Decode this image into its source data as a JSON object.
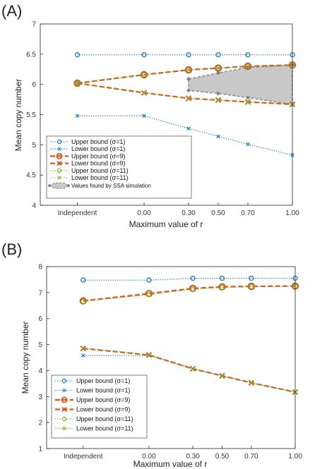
{
  "chart_data": [
    {
      "panel_label": "(A)",
      "type": "line",
      "xlabel": "Maximum value of  r",
      "ylabel": "Mean copy number",
      "categories": [
        "Independent",
        "0.00",
        "0.30",
        "0.50",
        "0.70",
        "1.00"
      ],
      "x": [
        -0.45,
        0.0,
        0.3,
        0.5,
        0.7,
        1.0
      ],
      "xlim": [
        -0.7,
        1.0
      ],
      "ylim": [
        4,
        7
      ],
      "yticks": [
        4,
        4.5,
        5,
        5.5,
        6,
        6.5,
        7
      ],
      "ytick_labels": [
        "4",
        "4.5",
        "5",
        "5.5",
        "6",
        "6.5",
        "7"
      ],
      "grid": false,
      "legend_position": "bottom-left",
      "series": [
        {
          "name": "Upper bound (σ=1)",
          "values": [
            6.49,
            6.49,
            6.49,
            6.49,
            6.49,
            6.49
          ],
          "color": "#1f77b4",
          "marker": "circle",
          "line": "dotted"
        },
        {
          "name": "Lower bound (σ=1)",
          "values": [
            5.48,
            5.48,
            5.27,
            5.14,
            5.01,
            4.83
          ],
          "color": "#1f77b4",
          "marker": "x",
          "line": "dotted"
        },
        {
          "name": "Upper bound (σ=9)",
          "values": [
            6.02,
            6.16,
            6.24,
            6.27,
            6.3,
            6.32
          ],
          "color": "#d95319",
          "marker": "circle",
          "line": "dashed"
        },
        {
          "name": "Lower bound (σ=9)",
          "values": [
            6.02,
            5.86,
            5.77,
            5.74,
            5.71,
            5.67
          ],
          "color": "#d95319",
          "marker": "x",
          "line": "dashed"
        },
        {
          "name": "Upper bound (σ=11)",
          "values": [
            6.02,
            6.16,
            6.24,
            6.27,
            6.3,
            6.31
          ],
          "color": "#77ac30",
          "marker": "circle",
          "line": "dotted"
        },
        {
          "name": "Lower bound (σ=11)",
          "values": [
            6.02,
            5.86,
            5.77,
            5.74,
            5.71,
            5.67
          ],
          "color": "#77ac30",
          "marker": "x",
          "line": "dotted"
        }
      ],
      "ssa_region": {
        "name": "Values found by SSA simulation",
        "x": [
          0.3,
          0.5,
          0.7,
          1.0
        ],
        "upper": [
          6.09,
          6.19,
          6.28,
          6.32
        ],
        "lower": [
          5.9,
          5.85,
          5.78,
          5.67
        ],
        "fill_color": "#c8c8c8",
        "line_color": "#808080"
      }
    },
    {
      "panel_label": "(B)",
      "type": "line",
      "xlabel": "Maximum value of  r",
      "ylabel": "Mean copy number",
      "categories": [
        "Independent",
        "0.00",
        "0.30",
        "0.50",
        "0.70",
        "1.00"
      ],
      "x": [
        -0.45,
        0.0,
        0.3,
        0.5,
        0.7,
        1.0
      ],
      "xlim": [
        -0.7,
        1.0
      ],
      "ylim": [
        1,
        8
      ],
      "yticks": [
        1,
        2,
        3,
        4,
        5,
        6,
        7,
        8
      ],
      "ytick_labels": [
        "1",
        "2",
        "3",
        "4",
        "5",
        "6",
        "7",
        "8"
      ],
      "grid": false,
      "legend_position": "bottom-left",
      "series": [
        {
          "name": "Upper bound (σ=1)",
          "values": [
            7.48,
            7.48,
            7.55,
            7.55,
            7.55,
            7.55
          ],
          "color": "#1f77b4",
          "marker": "circle",
          "line": "dotted"
        },
        {
          "name": "Lower bound (σ=1)",
          "values": [
            4.58,
            4.58,
            4.06,
            3.79,
            3.53,
            3.16
          ],
          "color": "#1f77b4",
          "marker": "x",
          "line": "dotted"
        },
        {
          "name": "Upper bound (σ=9)",
          "values": [
            6.68,
            6.96,
            7.16,
            7.22,
            7.24,
            7.25
          ],
          "color": "#d95319",
          "marker": "circle",
          "line": "dashed"
        },
        {
          "name": "Lower bound (σ=9)",
          "values": [
            4.85,
            4.6,
            4.07,
            3.8,
            3.53,
            3.17
          ],
          "color": "#d95319",
          "marker": "x",
          "line": "dashed"
        },
        {
          "name": "Upper bound (σ=11)",
          "values": [
            6.66,
            6.92,
            7.13,
            7.2,
            7.23,
            7.24
          ],
          "color": "#77ac30",
          "marker": "circle",
          "line": "dotted"
        },
        {
          "name": "Lower bound (σ=11)",
          "values": [
            4.87,
            4.61,
            4.07,
            3.8,
            3.53,
            3.17
          ],
          "color": "#77ac30",
          "marker": "x",
          "line": "dotted"
        }
      ]
    }
  ]
}
